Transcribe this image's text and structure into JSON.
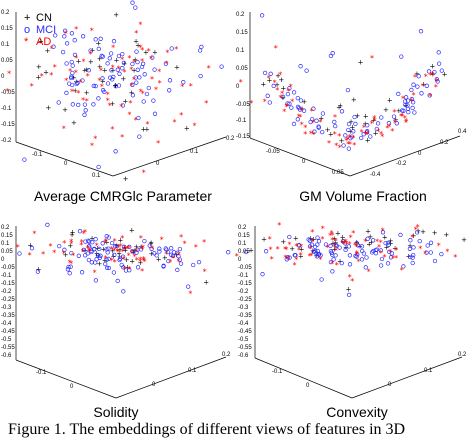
{
  "colors": {
    "CN": "#000000",
    "MCI": "#2b2bff",
    "AD": "#ff0000"
  },
  "legend": [
    {
      "series": "CN",
      "symbol": "+",
      "label": "CN",
      "color": "#000000"
    },
    {
      "series": "MCI",
      "symbol": "o",
      "label": "MCI",
      "color": "#2b2bff"
    },
    {
      "series": "AD",
      "symbol": "*",
      "label": "AD",
      "color": "#ff0000"
    }
  ],
  "caption": "Figure 1. The embeddings of different views of features in 3D",
  "chart_data": [
    {
      "type": "scatter",
      "title": "Average CMRGlc Parameter",
      "projection": "3d",
      "z_ticks": [
        "0.2",
        "0.15",
        "0.1",
        "0.05",
        "0",
        "-0.05",
        "-0.1",
        "-0.15",
        "-0.2"
      ],
      "x_ticks": [
        "-0.1",
        "0",
        "0.1"
      ],
      "y_ticks": [
        "0.2",
        "0.1",
        "0"
      ],
      "series": [
        {
          "name": "CN",
          "marker": "+",
          "count": 45,
          "approx_center": [
            0.0,
            0.0,
            0.06
          ]
        },
        {
          "name": "MCI",
          "marker": "o",
          "count": 95,
          "approx_center": [
            0.0,
            0.0,
            0.04
          ]
        },
        {
          "name": "AD",
          "marker": "*",
          "count": 75,
          "approx_center": [
            0.02,
            0.0,
            -0.02
          ]
        }
      ]
    },
    {
      "type": "scatter",
      "title": "GM Volume Fraction",
      "projection": "3d",
      "z_ticks": [
        "0.2",
        "0.15",
        "0.1",
        "0.05",
        "0",
        "-0.05",
        "-0.1",
        "-0.15"
      ],
      "x_ticks": [
        "-0.05",
        "0",
        "0.05"
      ],
      "y_ticks": [
        "0.4",
        "0.2",
        "0",
        "-0.2",
        "-0.4"
      ],
      "series": [
        {
          "name": "CN",
          "marker": "+",
          "count": 35,
          "approx_center": [
            0.0,
            0.1,
            0.02
          ]
        },
        {
          "name": "MCI",
          "marker": "o",
          "count": 90,
          "approx_center": [
            0.0,
            -0.1,
            -0.02
          ]
        },
        {
          "name": "AD",
          "marker": "*",
          "count": 70,
          "approx_center": [
            0.02,
            0.2,
            -0.06
          ]
        }
      ]
    },
    {
      "type": "scatter",
      "title": "Solidity",
      "projection": "3d",
      "z_ticks": [
        "0.2",
        "0.15",
        "0.1",
        "0.05",
        "0",
        "-0.05",
        "-0.1",
        "-0.15",
        "-0.2",
        "-0.25",
        "-0.3",
        "-0.35",
        "-0.4",
        "-0.45",
        "-0.5",
        "-0.55",
        "-0.6"
      ],
      "x_ticks": [
        "-0.1",
        "0"
      ],
      "y_ticks": [
        "0.2",
        "0.1",
        "0"
      ],
      "series": [
        {
          "name": "CN",
          "marker": "+",
          "count": 40,
          "approx_center": [
            0.0,
            0.0,
            0.02
          ]
        },
        {
          "name": "MCI",
          "marker": "o",
          "count": 95,
          "approx_center": [
            0.0,
            0.0,
            0.0
          ]
        },
        {
          "name": "AD",
          "marker": "*",
          "count": 70,
          "approx_center": [
            0.0,
            0.0,
            0.02
          ]
        }
      ]
    },
    {
      "type": "scatter",
      "title": "Convexity",
      "projection": "3d",
      "z_ticks": [
        "0.2",
        "0.15",
        "0.1",
        "0.05",
        "0",
        "-0.05",
        "-0.1",
        "-0.15",
        "-0.2",
        "-0.25",
        "-0.3",
        "-0.35",
        "-0.4",
        "-0.45",
        "-0.5",
        "-0.55",
        "-0.6"
      ],
      "x_ticks": [
        "-0.1",
        "0"
      ],
      "y_ticks": [
        "0.2",
        "0.1",
        "0"
      ],
      "series": [
        {
          "name": "CN",
          "marker": "+",
          "count": 40,
          "approx_center": [
            0.0,
            0.0,
            0.05
          ]
        },
        {
          "name": "MCI",
          "marker": "o",
          "count": 95,
          "approx_center": [
            0.0,
            0.0,
            0.0
          ]
        },
        {
          "name": "AD",
          "marker": "*",
          "count": 70,
          "approx_center": [
            0.0,
            0.0,
            0.04
          ]
        }
      ]
    }
  ]
}
